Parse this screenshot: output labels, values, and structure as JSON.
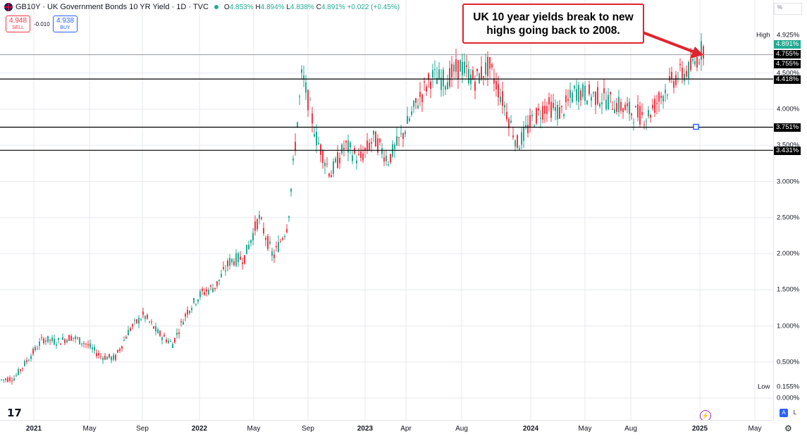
{
  "header": {
    "title": "GB10Y · UK Government Bonds 10 YR Yield · 1D · TVC",
    "o_label": "O",
    "o_value": "4.853%",
    "h_label": "H",
    "h_value": "4.894%",
    "l_label": "L",
    "l_value": "4.838%",
    "c_label": "C",
    "c_value": "4.891%",
    "change": "+0.022 (+0.45%)"
  },
  "trade": {
    "sell_price": "4.948",
    "sell_label": "SELL",
    "spread": "-0.010",
    "buy_price": "4.938",
    "buy_label": "BUY"
  },
  "annotation": "UK 10 year yields break to new highs going back to 2008.",
  "price_axis": {
    "unit_box": "%",
    "ticks": [
      {
        "label": "4.500%",
        "value": 4.5
      },
      {
        "label": "4.000%",
        "value": 4.0
      },
      {
        "label": "3.500%",
        "value": 3.5
      },
      {
        "label": "3.000%",
        "value": 3.0
      },
      {
        "label": "2.500%",
        "value": 2.5
      },
      {
        "label": "2.000%",
        "value": 2.0
      },
      {
        "label": "1.500%",
        "value": 1.5
      },
      {
        "label": "1.000%",
        "value": 1.0
      },
      {
        "label": "0.500%",
        "value": 0.5
      },
      {
        "label": "0.000%",
        "value": 0.0
      }
    ],
    "high_label": "High",
    "high_value": "4.925%",
    "low_label": "Low",
    "low_value": "0.155%",
    "last_price": "4.891%",
    "level_tags": [
      "4.755%",
      "4.755%",
      "4.418%",
      "3.751%",
      "3.431%"
    ]
  },
  "time_axis": [
    {
      "label": "2021",
      "bold": true
    },
    {
      "label": "May",
      "bold": false
    },
    {
      "label": "Sep",
      "bold": false
    },
    {
      "label": "2022",
      "bold": true
    },
    {
      "label": "May",
      "bold": false
    },
    {
      "label": "Sep",
      "bold": false
    },
    {
      "label": "2023",
      "bold": true
    },
    {
      "label": "Apr",
      "bold": false
    },
    {
      "label": "Aug",
      "bold": false
    },
    {
      "label": "2024",
      "bold": true
    },
    {
      "label": "May",
      "bold": false
    },
    {
      "label": "Aug",
      "bold": false
    },
    {
      "label": "2025",
      "bold": true
    },
    {
      "label": "May",
      "bold": false
    }
  ],
  "controls": {
    "logo": "17",
    "auto": "A",
    "log": "L",
    "bolt": "⚡",
    "gear": "⚙"
  },
  "colors": {
    "up": "#22ab94",
    "down": "#f23645",
    "annotation": "#e0242f",
    "grid": "#e6e9ef"
  },
  "chart_data": {
    "type": "line",
    "title": "GB10Y · UK Government Bonds 10 YR Yield · 1D · TVC",
    "series": [
      {
        "name": "",
        "x": [
          "2020-12",
          "2021-01",
          "2021-02",
          "2021-03",
          "2021-04",
          "2021-05",
          "2021-06",
          "2021-07",
          "2021-08",
          "2021-09",
          "2021-10",
          "2021-11",
          "2021-12",
          "2022-01",
          "2022-02",
          "2022-03",
          "2022-04",
          "2022-05",
          "2022-06",
          "2022-07",
          "2022-08",
          "2022-09",
          "2022-10",
          "2022-11",
          "2022-12",
          "2023-01",
          "2023-02",
          "2023-03",
          "2023-04",
          "2023-05",
          "2023-06",
          "2023-07",
          "2023-08",
          "2023-09",
          "2023-10",
          "2023-11",
          "2023-12",
          "2024-01",
          "2024-02",
          "2024-03",
          "2024-04",
          "2024-05",
          "2024-06",
          "2024-07",
          "2024-08",
          "2024-09",
          "2024-10",
          "2024-11",
          "2024-12",
          "2025-01"
        ],
        "values": [
          0.25,
          0.28,
          0.55,
          0.82,
          0.78,
          0.85,
          0.75,
          0.58,
          0.55,
          0.95,
          1.15,
          0.9,
          0.75,
          1.2,
          1.45,
          1.55,
          1.9,
          1.95,
          2.5,
          1.95,
          2.4,
          4.5,
          3.6,
          3.1,
          3.5,
          3.3,
          3.6,
          3.3,
          3.65,
          4.1,
          4.45,
          4.4,
          4.6,
          4.4,
          4.6,
          4.1,
          3.5,
          3.85,
          4.05,
          3.95,
          4.25,
          4.2,
          4.15,
          4.05,
          3.95,
          3.9,
          4.2,
          4.45,
          4.55,
          4.89
        ]
      }
    ],
    "levels": [
      4.755,
      4.418,
      3.751,
      3.431
    ],
    "ylim": [
      0.0,
      4.925
    ],
    "grid": true
  }
}
